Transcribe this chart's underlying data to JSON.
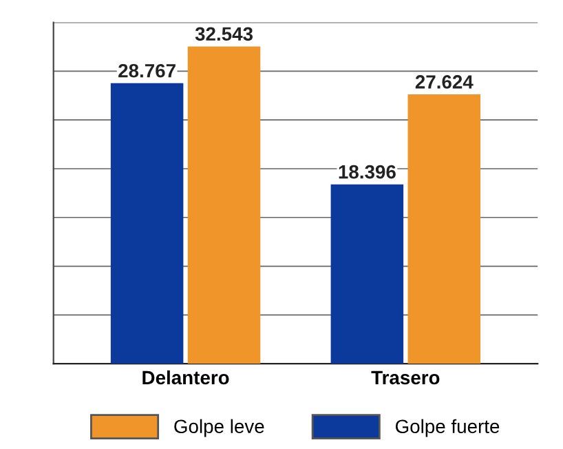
{
  "chart_data": {
    "type": "bar",
    "categories": [
      "Delantero",
      "Trasero"
    ],
    "series": [
      {
        "name": "Golpe fuerte",
        "color": "#0b3a9c",
        "values": [
          28.767,
          18.396
        ]
      },
      {
        "name": "Golpe leve",
        "color": "#f0952a",
        "values": [
          32.543,
          27.624
        ]
      }
    ],
    "ylim": [
      0,
      35
    ],
    "yticks": [
      {
        "value": 0,
        "label": null
      },
      {
        "value": 5,
        "label": null
      },
      {
        "value": 10,
        "label": null
      },
      {
        "value": 15,
        "label": null
      },
      {
        "value": 20,
        "label": null
      },
      {
        "value": 25,
        "label": null
      },
      {
        "value": 30,
        "label": null
      },
      {
        "value": 35,
        "label": null
      }
    ],
    "tick_labels": "x",
    "grid": "y",
    "data_labels": true,
    "legend": "bottom"
  }
}
